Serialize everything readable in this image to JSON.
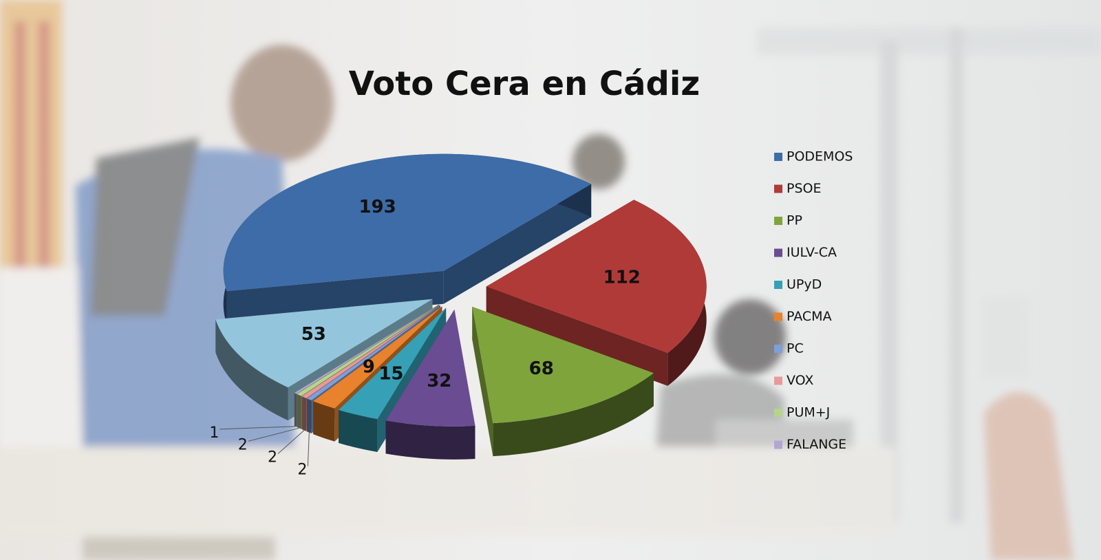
{
  "chart_data": {
    "type": "pie",
    "title": "Voto Cera en Cádiz",
    "categories": [
      "PODEMOS",
      "PSOE",
      "PP",
      "IULV-CA",
      "UPyD",
      "PACMA",
      "PC",
      "VOX",
      "PUM+J",
      "FALANGE",
      null
    ],
    "values": [
      193,
      112,
      68,
      32,
      15,
      9,
      2,
      2,
      2,
      1,
      53
    ],
    "colors": [
      "#3d6ca8",
      "#b03a38",
      "#7fa43c",
      "#6a4c93",
      "#36a0b6",
      "#e8822c",
      "#7f9fd8",
      "#e89a98",
      "#b6d58c",
      "#b0a8d0",
      "#93c6dc"
    ],
    "legend": "right",
    "exploded": true,
    "three_d": true
  }
}
